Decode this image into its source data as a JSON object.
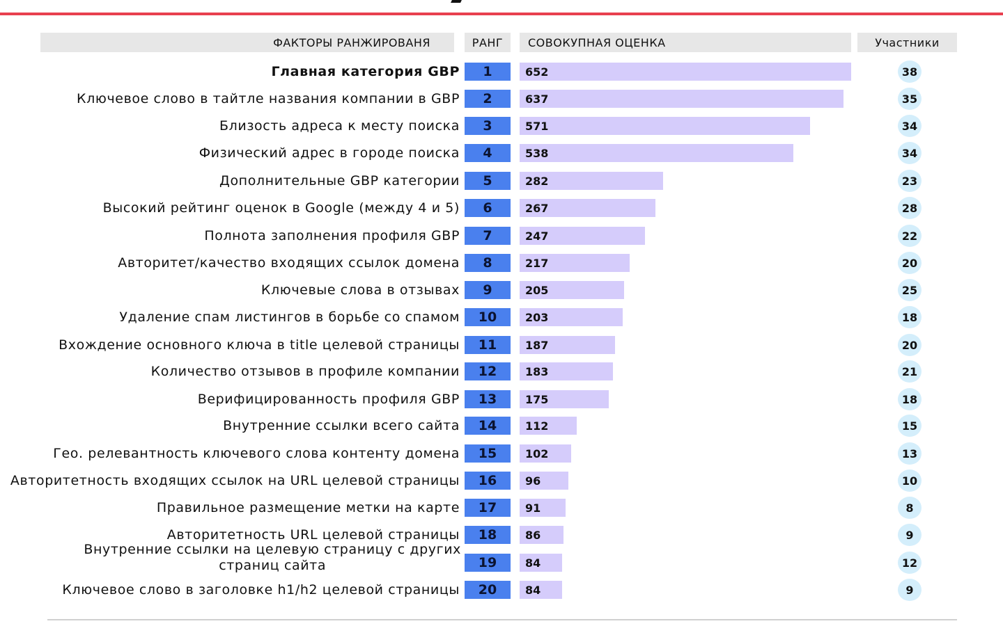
{
  "header": {
    "factors": "ФАКТОРЫ РАНЖИРОВАНЯ",
    "rank": "РАНГ",
    "score": "СОВОКУПНАЯ ОЦЕНКА",
    "participants": "Участники"
  },
  "colors": {
    "accent_rule": "#e8404f",
    "rank_fill": "#4a80ee",
    "bar_fill": "#d5ccfb",
    "participant_fill": "#d4eefb",
    "header_fill": "#e7e7e7"
  },
  "chart_data": {
    "type": "bar",
    "orientation": "horizontal",
    "categories": [
      "Главная категория GBP",
      "Ключевое слово в тайтле названия компании в GBP",
      "Близость адреса к месту поиска",
      "Физический адрес в городе поиска",
      "Дополнительные GBP категории",
      "Высокий рейтинг оценок в Google (между 4 и 5)",
      "Полнота заполнения профиля GBP",
      "Авторитет/качество входящих ссылок домена",
      "Ключевые слова в отзывах",
      "Удаление спам листингов в борьбе со спамом",
      "Вхождение основного ключа в title целевой страницы",
      "Количество отзывов в профиле компании",
      "Верифицированность профиля GBP",
      "Внутренние ссылки всего сайта",
      "Гео. релевантность ключевого слова контенту домена",
      "Авторитетность входящих ссылок на URL целевой страницы",
      "Правильное размещение метки на карте",
      "Авторитетность URL целевой страницы",
      "Внутренние ссылки на целевую страницу с других страниц сайта",
      "Ключевое слово в заголовке h1/h2 целевой страницы"
    ],
    "ranks": [
      1,
      2,
      3,
      4,
      5,
      6,
      7,
      8,
      9,
      10,
      11,
      12,
      13,
      14,
      15,
      16,
      17,
      18,
      19,
      20
    ],
    "values": [
      652,
      637,
      571,
      538,
      282,
      267,
      247,
      217,
      205,
      203,
      187,
      183,
      175,
      112,
      102,
      96,
      91,
      86,
      84,
      84
    ],
    "participants": [
      38,
      35,
      34,
      34,
      23,
      28,
      22,
      20,
      25,
      18,
      20,
      21,
      18,
      15,
      13,
      10,
      8,
      9,
      12,
      9
    ],
    "xlim": [
      0,
      652
    ]
  }
}
